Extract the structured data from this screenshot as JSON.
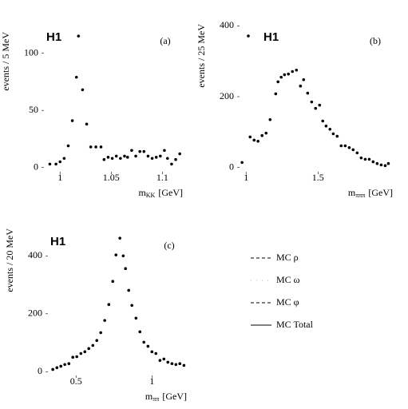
{
  "chart_data": [
    {
      "type": "scatter",
      "logo": "H1",
      "panel_label": "(a)",
      "ylabel": "events / 5 MeV",
      "xlabel": "m",
      "xlabel_sub": "KK",
      "xlabel_unit": "[GeV]",
      "color": "#000000",
      "x": [
        0.99,
        0.996,
        1.0,
        1.004,
        1.008,
        1.012,
        1.016,
        1.018,
        1.022,
        1.026,
        1.03,
        1.035,
        1.04,
        1.043,
        1.047,
        1.051,
        1.055,
        1.059,
        1.063,
        1.066,
        1.07,
        1.074,
        1.078,
        1.082,
        1.086,
        1.09,
        1.094,
        1.098,
        1.102,
        1.105,
        1.109,
        1.113,
        1.117
      ],
      "values": [
        3,
        3,
        5,
        8,
        19,
        41,
        79,
        115,
        68,
        38,
        18,
        18,
        18,
        7,
        9,
        8,
        10,
        8,
        10,
        9,
        15,
        10,
        14,
        14,
        10,
        8,
        9,
        10,
        15,
        8,
        3,
        7,
        12
      ],
      "xlim": [
        0.985,
        1.12
      ],
      "xticks": [
        1,
        1.05,
        1.1
      ],
      "ylim": [
        -3,
        120
      ],
      "yticks": [
        0,
        50,
        100
      ]
    },
    {
      "type": "scatter",
      "logo": "H1",
      "panel_label": "(b)",
      "ylabel": "events / 25 MeV",
      "xlabel": "m",
      "xlabel_sub": "πππ",
      "xlabel_unit": "[GeV]",
      "color": "#000000",
      "x": [
        0.972,
        1.028,
        1.056,
        1.083,
        1.111,
        1.139,
        1.167,
        1.206,
        1.222,
        1.244,
        1.267,
        1.294,
        1.322,
        1.35,
        1.378,
        1.4,
        1.428,
        1.456,
        1.483,
        1.511,
        1.533,
        1.556,
        1.583,
        1.606,
        1.633,
        1.661,
        1.689,
        1.717,
        1.744,
        1.772,
        1.8,
        1.828,
        1.856,
        1.883,
        1.911,
        1.939,
        1.967,
        1.989
      ],
      "values": [
        14,
        86,
        77,
        74,
        90,
        97,
        135,
        208,
        242,
        255,
        262,
        264,
        271,
        275,
        230,
        248,
        210,
        185,
        167,
        176,
        131,
        117,
        108,
        95,
        88,
        61,
        61,
        56,
        50,
        41,
        27,
        23,
        23,
        16,
        11,
        7,
        5,
        11
      ],
      "xlim": [
        0.96,
        2.02
      ],
      "xticks": [
        1,
        1.5
      ],
      "ylim": [
        -10,
        410
      ],
      "yticks": [
        0,
        200,
        400
      ]
    },
    {
      "type": "scatter",
      "logo": "H1",
      "panel_label": "(c)",
      "ylabel": "events / 20 MeV",
      "xlabel": "m",
      "xlabel_sub": "ππ",
      "xlabel_unit": "[GeV]",
      "color": "#000000",
      "x": [
        0.347,
        0.374,
        0.4,
        0.426,
        0.453,
        0.479,
        0.505,
        0.532,
        0.558,
        0.584,
        0.611,
        0.637,
        0.663,
        0.689,
        0.716,
        0.742,
        0.763,
        0.789,
        0.811,
        0.826,
        0.847,
        0.868,
        0.895,
        0.921,
        0.947,
        0.974,
        1.0,
        1.026,
        1.053,
        1.079,
        1.105,
        1.132,
        1.158,
        1.184,
        1.211
      ],
      "values": [
        8,
        14,
        19,
        25,
        28,
        50,
        52,
        63,
        69,
        80,
        91,
        108,
        135,
        177,
        232,
        312,
        403,
        461,
        400,
        356,
        281,
        229,
        185,
        138,
        102,
        88,
        69,
        63,
        39,
        44,
        33,
        28,
        25,
        28,
        22
      ],
      "xlim": [
        0.32,
        1.23
      ],
      "xticks": [
        0.5,
        1
      ],
      "ylim": [
        -10,
        500
      ],
      "yticks": [
        0,
        200,
        400
      ]
    }
  ],
  "legend": {
    "entries": [
      "MC ρ",
      "MC ω",
      "MC φ",
      "MC Total"
    ]
  }
}
